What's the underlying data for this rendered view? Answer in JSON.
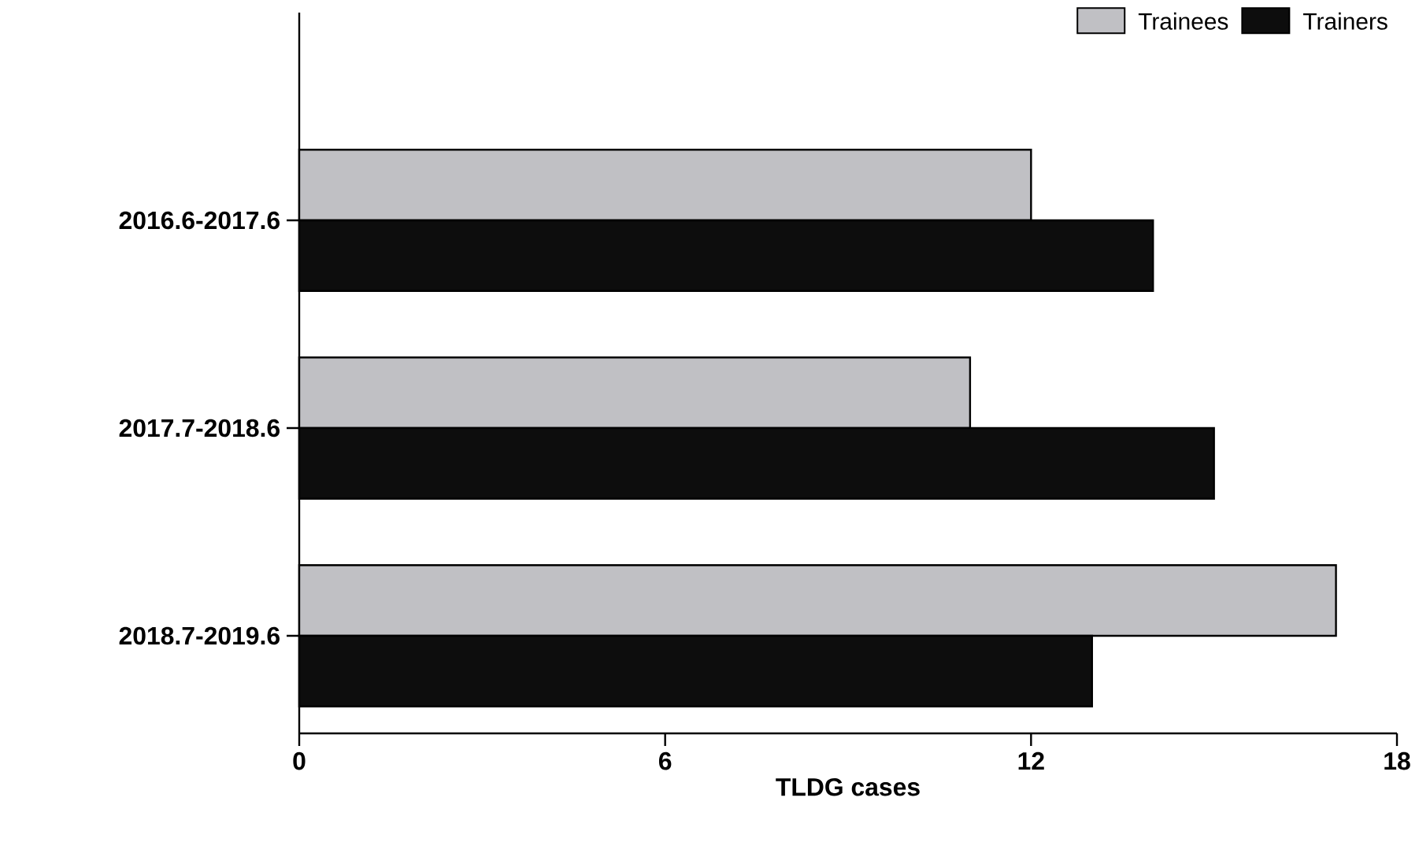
{
  "chart_data": {
    "type": "bar",
    "orientation": "horizontal",
    "xlabel": "TLDG cases",
    "categories": [
      "2016.6-2017.6",
      "2017.7-2018.6",
      "2018.7-2019.6"
    ],
    "series": [
      {
        "name": "Trainees",
        "color": "#c0c0c4",
        "values": [
          12,
          11,
          17
        ]
      },
      {
        "name": "Trainers",
        "color": "#0d0d0d",
        "values": [
          14,
          15,
          13
        ]
      }
    ],
    "xlim": [
      0,
      18
    ],
    "xticks": [
      0,
      6,
      12,
      18
    ],
    "legend": "top right"
  }
}
